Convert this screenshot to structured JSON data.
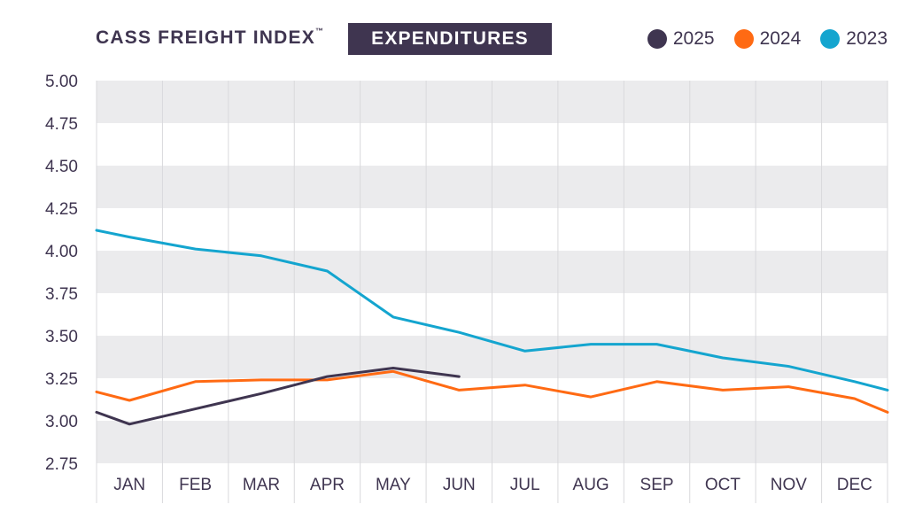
{
  "header": {
    "title": "CASS FREIGHT INDEX",
    "trademark": "™",
    "subtitle": "EXPENDITURES"
  },
  "colors": {
    "2025": "#3f3550",
    "2024": "#ff6a13",
    "2023": "#14a5cf",
    "band": "#ebebed",
    "grid": "#d9d9dc",
    "text": "#3f3550"
  },
  "chart_data": {
    "type": "line",
    "title": "CASS FREIGHT INDEX™ EXPENDITURES",
    "xlabel": "",
    "ylabel": "",
    "categories": [
      "JAN",
      "FEB",
      "MAR",
      "APR",
      "MAY",
      "JUN",
      "JUL",
      "AUG",
      "SEP",
      "OCT",
      "NOV",
      "DEC"
    ],
    "ylim": [
      2.75,
      5.0
    ],
    "yticks": [
      "5.00",
      "4.75",
      "4.50",
      "4.25",
      "4.00",
      "3.75",
      "3.50",
      "3.25",
      "3.00",
      "2.75"
    ],
    "legend_position": "top-right",
    "series": [
      {
        "name": "2025",
        "x": [
          0,
          0.5,
          1.5,
          2.5,
          3.5,
          4.5,
          5.5
        ],
        "values": [
          3.05,
          2.98,
          3.07,
          3.16,
          3.26,
          3.31,
          3.26
        ]
      },
      {
        "name": "2024",
        "x": [
          0,
          0.5,
          1.5,
          2.5,
          3.5,
          4.5,
          5.5,
          6.5,
          7.5,
          8.5,
          9.5,
          10.5,
          11.5,
          12
        ],
        "values": [
          3.17,
          3.12,
          3.23,
          3.24,
          3.24,
          3.29,
          3.18,
          3.21,
          3.14,
          3.23,
          3.18,
          3.2,
          3.13,
          3.05
        ]
      },
      {
        "name": "2023",
        "x": [
          0,
          0.5,
          1.5,
          2.5,
          3.5,
          4.5,
          5.5,
          6.5,
          7.5,
          8.5,
          9.5,
          10.5,
          11.5,
          12
        ],
        "values": [
          4.12,
          4.08,
          4.01,
          3.97,
          3.88,
          3.61,
          3.52,
          3.41,
          3.45,
          3.45,
          3.37,
          3.32,
          3.23,
          3.18
        ]
      }
    ]
  }
}
